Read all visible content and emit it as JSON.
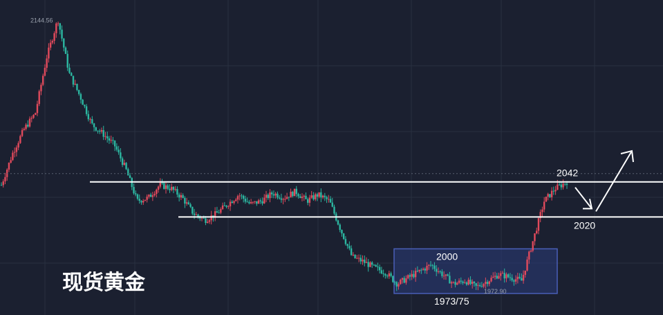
{
  "title": "现货黄金",
  "labels": {
    "high": "2144.56",
    "low": "1972.90",
    "resistance": "2042",
    "support": "2020",
    "box_top": "2000",
    "box_bottom": "1973/75"
  },
  "colors": {
    "background": "#1b2030",
    "grid": "#283040",
    "bullish": "#e24a5c",
    "bearish": "#2cb7a1",
    "lines": "#ffffff",
    "box_fill": "#2a3c7a",
    "box_stroke": "#4a5fb8"
  },
  "chart_data": {
    "type": "candlestick",
    "title": "现货黄金",
    "ylim": [
      1965,
      2150
    ],
    "levels": [
      {
        "label": "2042",
        "value": 2042
      },
      {
        "label": "2020",
        "value": 2020
      }
    ],
    "range_box": {
      "top_label": "2000",
      "bottom_label": "1973/75",
      "y_top": 2000,
      "y_bottom": 1972
    },
    "annotations": [
      {
        "text": "2144.56",
        "value": 2144.56
      },
      {
        "text": "1972.90",
        "value": 1972.9
      }
    ],
    "price_path": [
      2040,
      2060,
      2075,
      2085,
      2120,
      2144,
      2110,
      2095,
      2078,
      2072,
      2065,
      2050,
      2030,
      2032,
      2040,
      2038,
      2032,
      2022,
      2018,
      2022,
      2028,
      2034,
      2028,
      2030,
      2035,
      2032,
      2036,
      2030,
      2034,
      2030,
      2012,
      1995,
      1992,
      1988,
      1985,
      1978,
      1982,
      1986,
      1990,
      1984,
      1978,
      1980,
      1976,
      1980,
      1984,
      1982,
      1980,
      2005,
      2030,
      2038,
      2042
    ]
  }
}
